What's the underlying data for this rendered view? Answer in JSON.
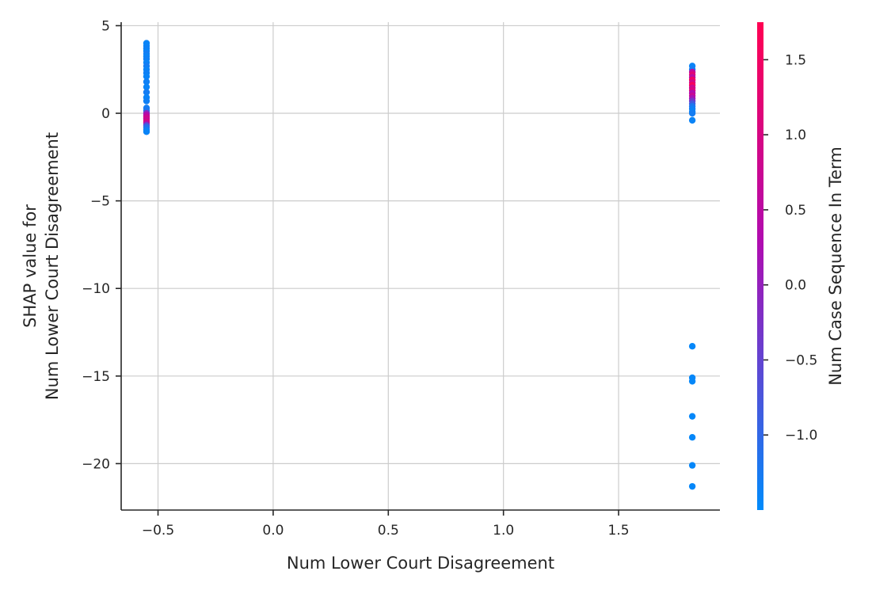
{
  "chart_data": {
    "type": "scatter",
    "xlabel": "Num  Lower Court Disagreement",
    "ylabel_lines": [
      "SHAP value for",
      "Num  Lower Court Disagreement"
    ],
    "xlim": [
      -0.66,
      1.94
    ],
    "ylim": [
      -22.65,
      5.2
    ],
    "x_ticks": [
      -0.5,
      0.0,
      0.5,
      1.0,
      1.5
    ],
    "x_tick_labels": [
      "−0.5",
      "0.0",
      "0.5",
      "1.0",
      "1.5"
    ],
    "y_ticks": [
      5,
      0,
      -5,
      -10,
      -15,
      -20
    ],
    "y_tick_labels": [
      "5",
      "0",
      "−5",
      "−10",
      "−15",
      "−20"
    ],
    "grid": true,
    "colorbar": {
      "label": "Num  Case Sequence In Term",
      "range": [
        -1.5,
        1.75
      ],
      "ticks": [
        1.5,
        1.0,
        0.5,
        0.0,
        -0.5,
        -1.0
      ],
      "tick_labels": [
        "1.5",
        "1.0",
        "0.5",
        "0.0",
        "−0.5",
        "−1.0"
      ],
      "color_low": "#008bfb",
      "color_mid": "#b00cb0",
      "color_high": "#ff0052"
    },
    "points": [
      {
        "x": -0.55,
        "y": 4.0,
        "c": -1.4
      },
      {
        "x": -0.55,
        "y": 3.85,
        "c": -1.4
      },
      {
        "x": -0.55,
        "y": 3.7,
        "c": -1.35
      },
      {
        "x": -0.55,
        "y": 3.55,
        "c": -1.4
      },
      {
        "x": -0.55,
        "y": 3.4,
        "c": -1.3
      },
      {
        "x": -0.55,
        "y": 3.25,
        "c": -1.4
      },
      {
        "x": -0.55,
        "y": 3.1,
        "c": -1.35
      },
      {
        "x": -0.55,
        "y": 2.9,
        "c": -1.4
      },
      {
        "x": -0.55,
        "y": 2.7,
        "c": -1.3
      },
      {
        "x": -0.55,
        "y": 2.5,
        "c": -1.4
      },
      {
        "x": -0.55,
        "y": 2.3,
        "c": -1.35
      },
      {
        "x": -0.55,
        "y": 2.1,
        "c": -1.4
      },
      {
        "x": -0.55,
        "y": 1.8,
        "c": -1.35
      },
      {
        "x": -0.55,
        "y": 1.5,
        "c": -1.4
      },
      {
        "x": -0.55,
        "y": 1.2,
        "c": -1.3
      },
      {
        "x": -0.55,
        "y": 0.9,
        "c": -1.4
      },
      {
        "x": -0.55,
        "y": 0.7,
        "c": -1.35
      },
      {
        "x": -0.55,
        "y": 0.3,
        "c": -1.3
      },
      {
        "x": -0.55,
        "y": 0.15,
        "c": -1.2
      },
      {
        "x": -0.55,
        "y": 0.0,
        "c": -0.2
      },
      {
        "x": -0.55,
        "y": -0.1,
        "c": 0.3
      },
      {
        "x": -0.55,
        "y": -0.2,
        "c": 0.6
      },
      {
        "x": -0.55,
        "y": -0.3,
        "c": 0.9
      },
      {
        "x": -0.55,
        "y": -0.4,
        "c": 0.7
      },
      {
        "x": -0.55,
        "y": -0.5,
        "c": 1.0
      },
      {
        "x": -0.55,
        "y": -0.6,
        "c": 0.4
      },
      {
        "x": -0.55,
        "y": -0.7,
        "c": -0.6
      },
      {
        "x": -0.55,
        "y": -0.8,
        "c": -1.1
      },
      {
        "x": -0.55,
        "y": -0.95,
        "c": -1.3
      },
      {
        "x": -0.55,
        "y": -1.05,
        "c": -1.4
      },
      {
        "x": 1.82,
        "y": 2.7,
        "c": -1.4
      },
      {
        "x": 1.82,
        "y": 2.5,
        "c": -1.3
      },
      {
        "x": 1.82,
        "y": 2.35,
        "c": 0.6
      },
      {
        "x": 1.82,
        "y": 2.2,
        "c": 1.2
      },
      {
        "x": 1.82,
        "y": 2.05,
        "c": 0.5
      },
      {
        "x": 1.82,
        "y": 1.9,
        "c": 1.5
      },
      {
        "x": 1.82,
        "y": 1.75,
        "c": 0.9
      },
      {
        "x": 1.82,
        "y": 1.6,
        "c": 1.6
      },
      {
        "x": 1.82,
        "y": 1.45,
        "c": 0.8
      },
      {
        "x": 1.82,
        "y": 1.3,
        "c": 1.1
      },
      {
        "x": 1.82,
        "y": 1.15,
        "c": 0.3
      },
      {
        "x": 1.82,
        "y": 1.0,
        "c": 0.7
      },
      {
        "x": 1.82,
        "y": 0.85,
        "c": 0.2
      },
      {
        "x": 1.82,
        "y": 0.7,
        "c": -0.3
      },
      {
        "x": 1.82,
        "y": 0.55,
        "c": -0.8
      },
      {
        "x": 1.82,
        "y": 0.4,
        "c": -1.2
      },
      {
        "x": 1.82,
        "y": 0.25,
        "c": -1.35
      },
      {
        "x": 1.82,
        "y": 0.1,
        "c": -1.4
      },
      {
        "x": 1.82,
        "y": 0.0,
        "c": -1.3
      },
      {
        "x": 1.82,
        "y": -0.4,
        "c": -1.4
      },
      {
        "x": 1.82,
        "y": -13.3,
        "c": -1.45
      },
      {
        "x": 1.82,
        "y": -15.1,
        "c": -1.45
      },
      {
        "x": 1.82,
        "y": -15.3,
        "c": -1.45
      },
      {
        "x": 1.82,
        "y": -17.3,
        "c": -1.45
      },
      {
        "x": 1.82,
        "y": -18.5,
        "c": -1.45
      },
      {
        "x": 1.82,
        "y": -20.1,
        "c": -1.45
      },
      {
        "x": 1.82,
        "y": -21.3,
        "c": -1.45
      }
    ]
  }
}
